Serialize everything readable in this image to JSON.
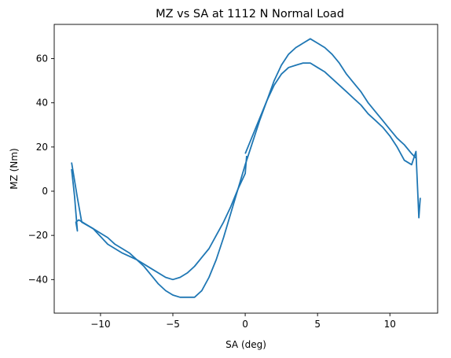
{
  "chart_data": {
    "type": "line",
    "title": "MZ vs SA at 1112 N Normal Load",
    "xlabel": "SA (deg)",
    "ylabel": "MZ (Nm)",
    "xlim": [
      -13.2,
      13.3
    ],
    "ylim": [
      -55.2,
      75.5
    ],
    "x_ticks": [
      -10,
      -5,
      0,
      5,
      10
    ],
    "y_ticks": [
      -40,
      -20,
      0,
      20,
      40,
      60
    ],
    "x_tick_labels": [
      "−10",
      "−5",
      "0",
      "5",
      "10"
    ],
    "y_tick_labels": [
      "−40",
      "−20",
      "0",
      "20",
      "40",
      "60"
    ],
    "grid": false,
    "series": [
      {
        "color": "#1f77b4",
        "x": [
          -12.0,
          -11.6,
          -11.3,
          -10.5,
          -9.5,
          -8.5,
          -7.5,
          -6.5,
          -5.5,
          -5.0,
          -4.5,
          -4.0,
          -3.5,
          -3.0,
          -2.5,
          -2.0,
          -1.5,
          -1.0,
          -0.5,
          0.0,
          0.1
        ],
        "y": [
          13,
          -3,
          -14,
          -17,
          -24,
          -28,
          -31,
          -35,
          -39,
          -40,
          -39,
          -37,
          -34,
          -30,
          -26,
          -20,
          -14,
          -7,
          1,
          8,
          16
        ]
      },
      {
        "color": "#1f77b4",
        "x": [
          0.0,
          0.5,
          1.0,
          1.5,
          2.0,
          2.5,
          3.0,
          3.5,
          4.0,
          4.5,
          5.0,
          5.5,
          6.0,
          6.5,
          7.0,
          7.5,
          8.0,
          8.5,
          9.0,
          9.5,
          10.0,
          10.5,
          11.0,
          11.5,
          11.8,
          12.0,
          12.1
        ],
        "y": [
          17,
          25,
          33,
          41,
          48,
          53,
          56,
          57,
          58,
          58,
          56,
          54,
          51,
          48,
          45,
          42,
          39,
          35,
          32,
          29,
          25,
          20,
          14,
          12,
          18,
          -12,
          -3
        ]
      },
      {
        "color": "#1f77b4",
        "x": [
          11.8,
          11.5,
          11.0,
          10.5,
          10.0,
          9.5,
          9.0,
          8.5,
          8.0,
          7.5,
          7.0,
          6.5,
          6.0,
          5.5,
          5.0,
          4.5,
          4.0,
          3.5,
          3.0,
          2.5,
          2.0,
          1.5,
          1.0,
          0.5,
          0.0,
          -0.5,
          -1.0,
          -1.5,
          -2.0,
          -2.5,
          -3.0,
          -3.5,
          -4.0,
          -4.5,
          -5.0,
          -5.5,
          -6.0,
          -6.5,
          -7.0,
          -7.5,
          -8.0,
          -8.5,
          -9.0,
          -9.5,
          -10.0,
          -10.5,
          -11.0,
          -11.5,
          -11.7,
          -11.6,
          -11.8,
          -12.0
        ],
        "y": [
          15,
          17,
          21,
          24,
          28,
          32,
          36,
          40,
          45,
          49,
          53,
          58,
          62,
          65,
          67,
          69,
          67,
          65,
          62,
          57,
          50,
          41,
          32,
          22,
          12,
          1,
          -10,
          -21,
          -31,
          -39,
          -45,
          -48,
          -48,
          -48,
          -47,
          -45,
          -42,
          -38,
          -34,
          -31,
          -28,
          -26,
          -24,
          -21,
          -19,
          -17,
          -15,
          -13,
          -14,
          -18,
          -2,
          10
        ]
      }
    ]
  }
}
